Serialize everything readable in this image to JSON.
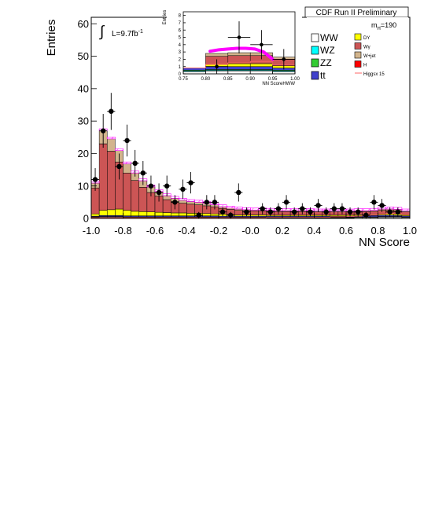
{
  "chart_data": [
    {
      "type": "bar",
      "stacked": true,
      "panel": "main",
      "xlabel": "NN Score",
      "ylabel": "Entries",
      "xlim": [
        -1.0,
        1.0
      ],
      "ylim": [
        0,
        62
      ],
      "xticks": [
        "-1.0",
        "-0.8",
        "-0.6",
        "-0.4",
        "-0.2",
        "-0.0",
        "0.2",
        "0.4",
        "0.6",
        "0.8",
        "1.0"
      ],
      "yticks": [
        "0",
        "10",
        "20",
        "30",
        "40",
        "50",
        "60"
      ],
      "header": "CDF Run II Preliminary",
      "luminosity": "L=9.7fb",
      "luminosity_sup": "-1",
      "mass_label": "m",
      "mass_sub": "H",
      "mass_value": "=190",
      "bin_edges": [
        -1.0,
        -0.95,
        -0.9,
        -0.85,
        -0.8,
        -0.75,
        -0.7,
        -0.65,
        -0.6,
        -0.55,
        -0.5,
        -0.45,
        -0.4,
        -0.35,
        -0.3,
        -0.25,
        -0.2,
        -0.15,
        -0.1,
        -0.05,
        0.0,
        0.05,
        0.1,
        0.15,
        0.2,
        0.25,
        0.3,
        0.35,
        0.4,
        0.45,
        0.5,
        0.55,
        0.6,
        0.65,
        0.7,
        0.75,
        0.8,
        0.85,
        0.9,
        0.95,
        1.0
      ],
      "series": [
        {
          "name": "WW",
          "color": "#ffffff",
          "values": [
            0.3,
            0.4,
            0.4,
            0.4,
            0.3,
            0.3,
            0.3,
            0.3,
            0.3,
            0.3,
            0.3,
            0.3,
            0.3,
            0.3,
            0.3,
            0.3,
            0.2,
            0.2,
            0.2,
            0.2,
            0.2,
            0.2,
            0.2,
            0.2,
            0.2,
            0.2,
            0.2,
            0.2,
            0.2,
            0.2,
            0.2,
            0.2,
            0.2,
            0.3,
            0.3,
            0.3,
            0.4,
            0.4,
            0.4,
            0.3
          ]
        },
        {
          "name": "WZ",
          "color": "#00ffff",
          "values": [
            0.1,
            0.1,
            0.1,
            0.1,
            0.1,
            0.1,
            0.1,
            0.1,
            0.1,
            0.1,
            0.1,
            0.1,
            0.1,
            0.1,
            0.1,
            0.1,
            0.1,
            0.1,
            0.1,
            0.1,
            0.1,
            0.1,
            0.1,
            0.1,
            0.1,
            0.1,
            0.1,
            0.1,
            0.1,
            0.1,
            0.1,
            0.1,
            0.1,
            0.1,
            0.1,
            0.1,
            0.1,
            0.1,
            0.1,
            0.1
          ]
        },
        {
          "name": "ZZ",
          "color": "#33cc33",
          "values": [
            0.1,
            0.1,
            0.1,
            0.1,
            0.1,
            0.1,
            0.1,
            0.1,
            0.1,
            0.1,
            0.1,
            0.1,
            0.1,
            0.1,
            0.1,
            0.1,
            0.1,
            0.1,
            0.1,
            0.1,
            0.1,
            0.1,
            0.1,
            0.1,
            0.1,
            0.1,
            0.1,
            0.1,
            0.1,
            0.1,
            0.1,
            0.1,
            0.1,
            0.1,
            0.1,
            0.1,
            0.1,
            0.1,
            0.1,
            0.1
          ]
        },
        {
          "name": "tt",
          "color": "#4040cc",
          "values": [
            0.2,
            0.3,
            0.3,
            0.3,
            0.3,
            0.3,
            0.3,
            0.3,
            0.3,
            0.3,
            0.3,
            0.3,
            0.3,
            0.3,
            0.3,
            0.3,
            0.3,
            0.3,
            0.3,
            0.3,
            0.3,
            0.3,
            0.3,
            0.3,
            0.3,
            0.3,
            0.3,
            0.3,
            0.3,
            0.3,
            0.3,
            0.3,
            0.3,
            0.3,
            0.3,
            0.4,
            0.4,
            0.4,
            0.3,
            0.3
          ]
        },
        {
          "name": "DY",
          "color": "#ffff00",
          "values": [
            0.7,
            1.6,
            1.8,
            2.0,
            1.7,
            1.4,
            1.3,
            1.2,
            1.1,
            1.0,
            0.9,
            0.9,
            0.8,
            0.8,
            0.7,
            0.6,
            0.6,
            0.5,
            0.4,
            0.4,
            0.4,
            0.4,
            0.3,
            0.3,
            0.3,
            0.3,
            0.3,
            0.3,
            0.3,
            0.3,
            0.3,
            0.3,
            0.3,
            0.3,
            0.3,
            0.3,
            0.4,
            0.4,
            0.4,
            0.3
          ]
        },
        {
          "name": "Wγ",
          "color": "#cc5555",
          "values": [
            8.0,
            20.5,
            18.0,
            14.5,
            11.5,
            9.5,
            7.5,
            6.0,
            5.0,
            4.0,
            3.5,
            3.0,
            2.8,
            2.6,
            2.4,
            2.2,
            1.8,
            1.6,
            1.4,
            1.3,
            1.2,
            1.2,
            1.2,
            1.1,
            1.1,
            1.1,
            1.1,
            1.1,
            1.0,
            1.0,
            1.0,
            1.0,
            1.0,
            1.0,
            1.0,
            1.0,
            1.1,
            1.1,
            1.1,
            0.9
          ]
        },
        {
          "name": "W+jet",
          "color": "#d2b48c",
          "values": [
            1.5,
            4.0,
            3.8,
            3.5,
            2.8,
            2.3,
            2.0,
            1.7,
            1.4,
            1.2,
            1.0,
            0.9,
            0.8,
            0.8,
            0.7,
            0.6,
            0.5,
            0.4,
            0.4,
            0.3,
            0.3,
            0.3,
            0.3,
            0.3,
            0.3,
            0.3,
            0.3,
            0.3,
            0.3,
            0.3,
            0.3,
            0.3,
            0.3,
            0.3,
            0.3,
            0.3,
            0.4,
            0.4,
            0.4,
            0.3
          ]
        }
      ],
      "signal": {
        "name": "H",
        "color": "#ff0000",
        "values": [
          0.0,
          0.0,
          0.0,
          0.0,
          0.0,
          0.0,
          0.0,
          0.0,
          0.0,
          0.0,
          0.0,
          0.0,
          0.0,
          0.0,
          0.0,
          0.0,
          0.0,
          0.0,
          0.0,
          0.0,
          0.0,
          0.0,
          0.0,
          0.0,
          0.0,
          0.0,
          0.0,
          0.0,
          0.0,
          0.0,
          0.0,
          0.0,
          0.0,
          0.0,
          0.1,
          0.1,
          0.2,
          0.2,
          0.2,
          0.1
        ]
      },
      "signal_scaled": {
        "name": "Higgsx 15",
        "color": "#ff6666",
        "values": [
          0.2,
          0.2,
          0.2,
          0.2,
          0.2,
          0.2,
          0.2,
          0.2,
          0.2,
          0.2,
          0.2,
          0.2,
          0.2,
          0.2,
          0.2,
          0.2,
          0.2,
          0.2,
          0.2,
          0.2,
          0.2,
          0.2,
          0.3,
          0.3,
          0.3,
          0.3,
          0.3,
          0.3,
          0.4,
          0.4,
          0.5,
          0.5,
          0.6,
          0.7,
          0.9,
          1.1,
          1.3,
          1.5,
          1.7,
          1.2
        ]
      },
      "data_points": [
        {
          "x": -0.975,
          "y": 12,
          "err": 3.5
        },
        {
          "x": -0.925,
          "y": 27,
          "err": 5.2
        },
        {
          "x": -0.875,
          "y": 33,
          "err": 5.7
        },
        {
          "x": -0.825,
          "y": 16,
          "err": 4.0
        },
        {
          "x": -0.775,
          "y": 24,
          "err": 4.9
        },
        {
          "x": -0.725,
          "y": 17,
          "err": 4.1
        },
        {
          "x": -0.675,
          "y": 14,
          "err": 3.7
        },
        {
          "x": -0.625,
          "y": 10,
          "err": 3.2
        },
        {
          "x": -0.575,
          "y": 8,
          "err": 2.8
        },
        {
          "x": -0.525,
          "y": 10,
          "err": 3.2
        },
        {
          "x": -0.475,
          "y": 5,
          "err": 2.2
        },
        {
          "x": -0.425,
          "y": 9,
          "err": 3.0
        },
        {
          "x": -0.375,
          "y": 11,
          "err": 3.3
        },
        {
          "x": -0.325,
          "y": 1,
          "err": 1.0
        },
        {
          "x": -0.275,
          "y": 5,
          "err": 2.2
        },
        {
          "x": -0.225,
          "y": 5,
          "err": 2.2
        },
        {
          "x": -0.175,
          "y": 2,
          "err": 1.4
        },
        {
          "x": -0.125,
          "y": 1,
          "err": 1.0
        },
        {
          "x": -0.075,
          "y": 8,
          "err": 2.8
        },
        {
          "x": -0.025,
          "y": 2,
          "err": 1.4
        },
        {
          "x": 0.075,
          "y": 3,
          "err": 1.7
        },
        {
          "x": 0.125,
          "y": 2,
          "err": 1.4
        },
        {
          "x": 0.175,
          "y": 3,
          "err": 1.7
        },
        {
          "x": 0.225,
          "y": 5,
          "err": 2.2
        },
        {
          "x": 0.275,
          "y": 2,
          "err": 1.4
        },
        {
          "x": 0.325,
          "y": 3,
          "err": 1.7
        },
        {
          "x": 0.375,
          "y": 2,
          "err": 1.4
        },
        {
          "x": 0.425,
          "y": 4,
          "err": 2.0
        },
        {
          "x": 0.475,
          "y": 2,
          "err": 1.4
        },
        {
          "x": 0.525,
          "y": 3,
          "err": 1.7
        },
        {
          "x": 0.575,
          "y": 3,
          "err": 1.7
        },
        {
          "x": 0.625,
          "y": 2,
          "err": 1.4
        },
        {
          "x": 0.675,
          "y": 2,
          "err": 1.4
        },
        {
          "x": 0.725,
          "y": 1,
          "err": 1.0
        },
        {
          "x": 0.775,
          "y": 5,
          "err": 2.2
        },
        {
          "x": 0.825,
          "y": 4,
          "err": 2.0
        },
        {
          "x": 0.875,
          "y": 2,
          "err": 1.4
        },
        {
          "x": 0.925,
          "y": 2,
          "err": 1.4
        }
      ],
      "legend": {
        "placement": "top-right",
        "left_entries": [
          {
            "label": "WW",
            "color": "#ffffff"
          },
          {
            "label": "WZ",
            "color": "#00ffff"
          },
          {
            "label": "ZZ",
            "color": "#33cc33"
          },
          {
            "label": "t",
            "label_extra": "t",
            "color": "#4040cc"
          }
        ],
        "right_entries": [
          {
            "label": "DY",
            "color": "#ffff00",
            "kind": "box"
          },
          {
            "label": "Wγ",
            "color": "#cc5555",
            "kind": "box"
          },
          {
            "label": "W+jet",
            "color": "#d2b48c",
            "kind": "box"
          },
          {
            "label": "H",
            "color": "#ff0000",
            "kind": "box"
          },
          {
            "label": "Higgsx 15",
            "color": "#ff6666",
            "kind": "line"
          }
        ]
      }
    },
    {
      "type": "bar",
      "stacked": true,
      "panel": "inset",
      "xlabel": "NN ScoreHWW",
      "ylabel": "Entries",
      "xlim": [
        0.75,
        1.0
      ],
      "ylim": [
        0,
        8.5
      ],
      "xticks": [
        "0.75",
        "0.80",
        "0.85",
        "0.90",
        "0.95",
        "1.00"
      ],
      "yticks": [
        "0",
        "1",
        "2",
        "3",
        "4",
        "5",
        "6",
        "7",
        "8"
      ],
      "bin_edges": [
        0.75,
        0.8,
        0.85,
        0.9,
        0.95,
        1.0
      ],
      "series": [
        {
          "name": "WW",
          "color": "#ffffff",
          "values": [
            0.3,
            0.4,
            0.4,
            0.4,
            0.3
          ]
        },
        {
          "name": "WZ",
          "color": "#00ffff",
          "values": [
            0.1,
            0.1,
            0.1,
            0.1,
            0.1
          ]
        },
        {
          "name": "ZZ",
          "color": "#33cc33",
          "values": [
            0.1,
            0.1,
            0.1,
            0.1,
            0.1
          ]
        },
        {
          "name": "tt",
          "color": "#4040cc",
          "values": [
            0.3,
            0.4,
            0.4,
            0.4,
            0.3
          ]
        },
        {
          "name": "DY",
          "color": "#ffff00",
          "values": [
            0.0,
            0.3,
            0.4,
            0.4,
            0.3
          ]
        },
        {
          "name": "Wγ",
          "color": "#cc5555",
          "values": [
            0.0,
            1.1,
            1.1,
            1.1,
            0.9
          ]
        },
        {
          "name": "W+jet",
          "color": "#d2b48c",
          "values": [
            0.0,
            0.4,
            0.4,
            0.4,
            0.3
          ]
        }
      ],
      "signal_scaled": {
        "name": "Higgsx 15",
        "color": "#ff6666",
        "values": [
          0.8,
          1.3,
          1.5,
          1.7,
          1.2
        ]
      },
      "signal_curve": {
        "color": "#ff00ff",
        "x": [
          0.81,
          0.83,
          0.85,
          0.87,
          0.89,
          0.91,
          0.93,
          0.95
        ],
        "y": [
          3.1,
          3.3,
          3.4,
          3.5,
          3.5,
          3.4,
          3.0,
          2.0
        ]
      },
      "data_points": [
        {
          "x": 0.825,
          "y": 1,
          "err": 1.0
        },
        {
          "x": 0.875,
          "y": 5,
          "err": 2.2
        },
        {
          "x": 0.925,
          "y": 4,
          "err": 2.0
        },
        {
          "x": 0.975,
          "y": 2,
          "err": 1.4
        }
      ]
    }
  ]
}
